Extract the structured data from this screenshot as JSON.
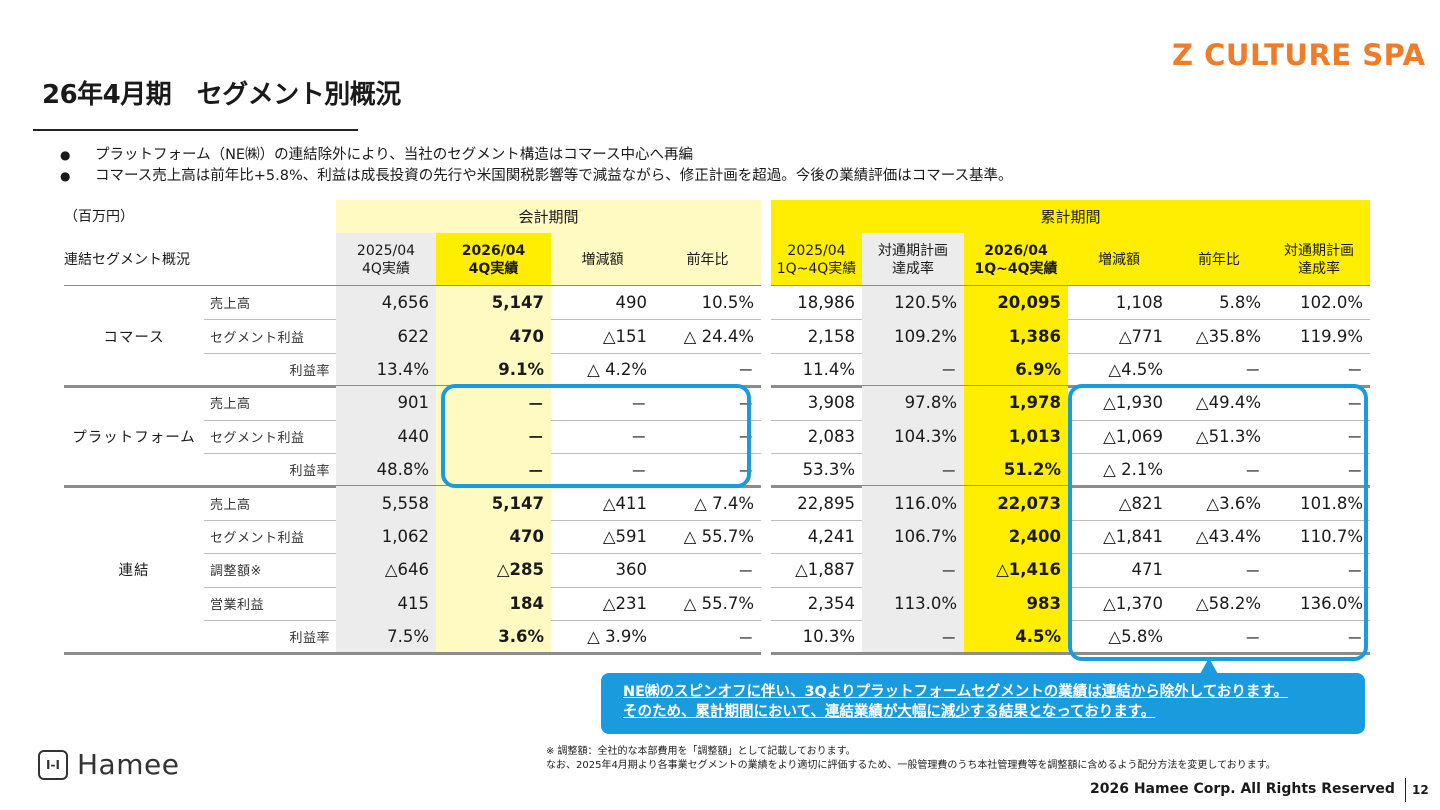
{
  "brand": "Z CULTURE SPA",
  "title": "26年4月期　セグメント別概況",
  "bullets": [
    "プラットフォーム（NE㈱）の連結除外により、当社のセグメント構造はコマース中心へ再編",
    "コマース売上高は前年比+5.8%、利益は成長投資の先行や米国関税影響等で減益ながら、修正計画を超過。今後の業績評価はコマース基準。"
  ],
  "table": {
    "unit": "（百万円）",
    "corner_label": "連結セグメント概況",
    "group_quarter": "会計期間",
    "group_cumulative": "累計期間",
    "column_headers": [
      "2025/04\n4Q実績",
      "2026/04\n4Q実績",
      "増減額",
      "前年比",
      "2025/04\n1Q~4Q実績",
      "対通期計画\n達成率",
      "2026/04\n1Q~4Q実績",
      "増減額",
      "前年比",
      "対通期計画\n達成率"
    ],
    "segments": [
      {
        "name": "コマース",
        "rows": [
          {
            "label": "売上高",
            "values": [
              "4,656",
              "5,147",
              "490",
              "10.5%",
              "18,986",
              "120.5%",
              "20,095",
              "1,108",
              "5.8%",
              "102.0%"
            ]
          },
          {
            "label": "セグメント利益",
            "values": [
              "622",
              "470",
              "△151",
              "△ 24.4%",
              "2,158",
              "109.2%",
              "1,386",
              "△771",
              "△35.8%",
              "119.9%"
            ]
          },
          {
            "label": "利益率",
            "values": [
              "13.4%",
              "9.1%",
              "△ 4.2%",
              "－",
              "11.4%",
              "－",
              "6.9%",
              "△4.5%",
              "－",
              "－"
            ]
          }
        ]
      },
      {
        "name": "プラットフォーム",
        "rows": [
          {
            "label": "売上高",
            "values": [
              "901",
              "－",
              "－",
              "－",
              "3,908",
              "97.8%",
              "1,978",
              "△1,930",
              "△49.4%",
              "－"
            ]
          },
          {
            "label": "セグメント利益",
            "values": [
              "440",
              "－",
              "－",
              "－",
              "2,083",
              "104.3%",
              "1,013",
              "△1,069",
              "△51.3%",
              "－"
            ]
          },
          {
            "label": "利益率",
            "values": [
              "48.8%",
              "－",
              "－",
              "－",
              "53.3%",
              "－",
              "51.2%",
              "△ 2.1%",
              "－",
              "－"
            ]
          }
        ]
      },
      {
        "name": "連結",
        "rows": [
          {
            "label": "売上高",
            "values": [
              "5,558",
              "5,147",
              "△411",
              "△ 7.4%",
              "22,895",
              "116.0%",
              "22,073",
              "△821",
              "△3.6%",
              "101.8%"
            ]
          },
          {
            "label": "セグメント利益",
            "values": [
              "1,062",
              "470",
              "△591",
              "△ 55.7%",
              "4,241",
              "106.7%",
              "2,400",
              "△1,841",
              "△43.4%",
              "110.7%"
            ]
          },
          {
            "label": "調整額※",
            "values": [
              "△646",
              "△285",
              "360",
              "－",
              "△1,887",
              "－",
              "△1,416",
              "471",
              "－",
              "－"
            ]
          },
          {
            "label": "営業利益",
            "values": [
              "415",
              "184",
              "△231",
              "△ 55.7%",
              "2,354",
              "113.0%",
              "983",
              "△1,370",
              "△58.2%",
              "136.0%"
            ]
          },
          {
            "label": "利益率",
            "values": [
              "7.5%",
              "3.6%",
              "△ 3.9%",
              "－",
              "10.3%",
              "－",
              "4.5%",
              "△5.8%",
              "－",
              "－"
            ]
          }
        ]
      }
    ]
  },
  "callout": [
    "NE㈱のスピンオフに伴い、3Qよりプラットフォームセグメントの業績は連結から除外しております。",
    "そのため、累計期間において、連結業績が大幅に減少する結果となっております。"
  ],
  "footnotes": [
    "※ 調整額：全社的な本部費用を「調整額」として記載しております。",
    "なお、2025年4月期より各事業セグメントの業績をより適切に評価するため、一般管理費のうち本社管理費等を調整額に含めるよう配分方法を変更しております。"
  ],
  "logo": {
    "mark": "I-I",
    "text": "Hamee"
  },
  "copyright": "2026 Hamee Corp. All Rights Reserved",
  "page_number": "12",
  "colors": {
    "brand": "#f07c28",
    "highlight_yellow": "#ffee00",
    "light_yellow": "#fff9c2",
    "callout_blue": "#1a9bde"
  }
}
